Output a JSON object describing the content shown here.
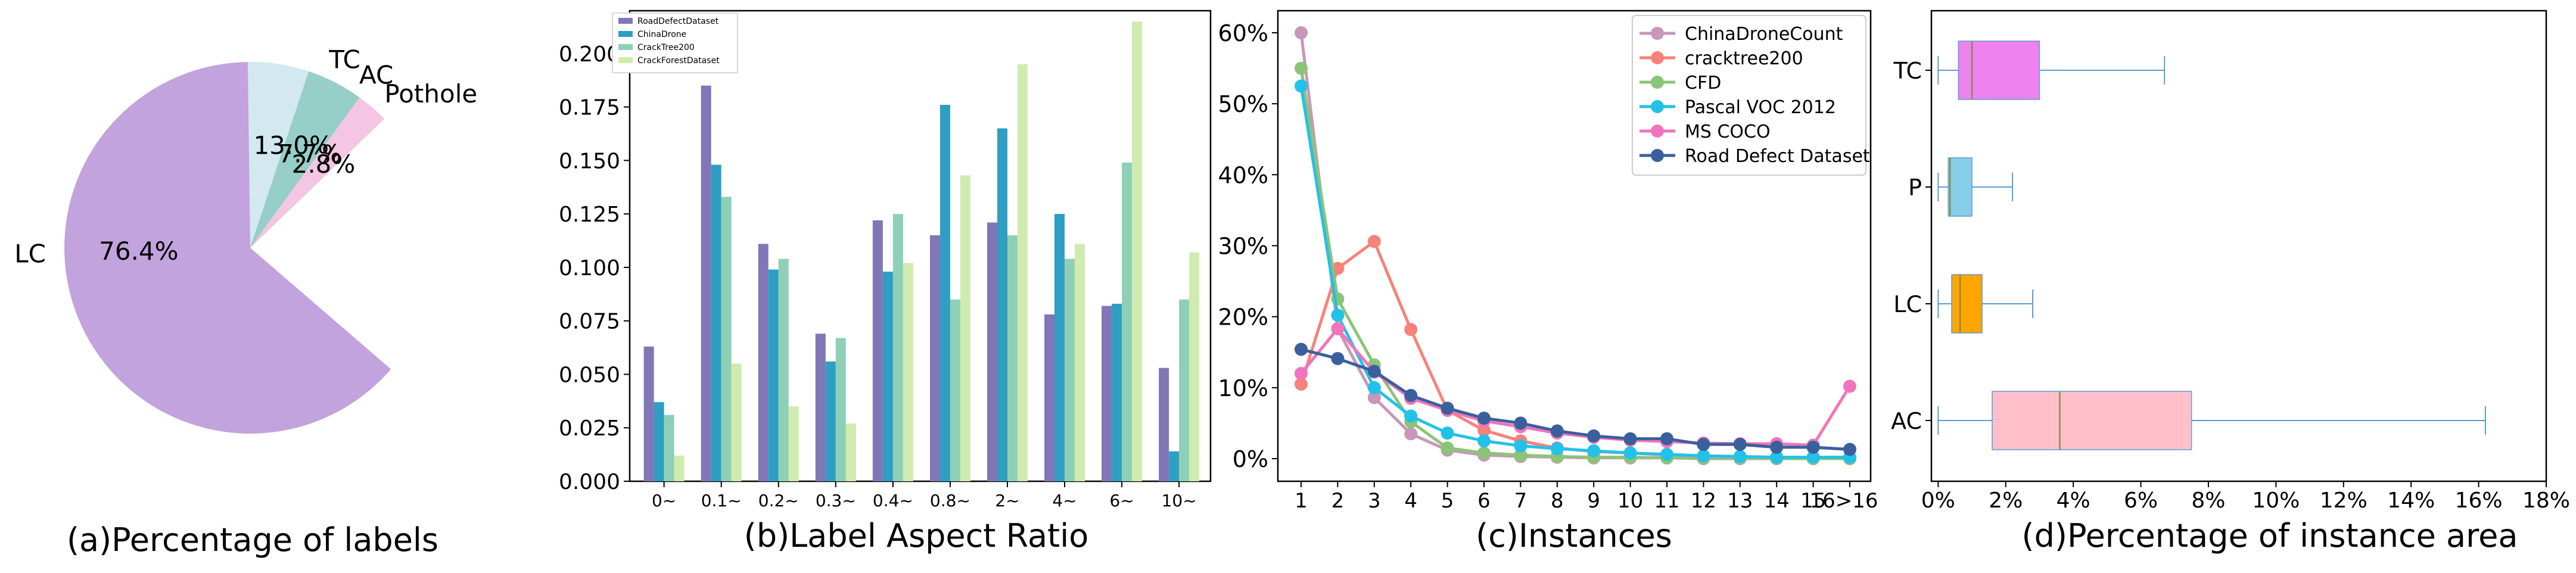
{
  "colors": {
    "pie_lc": "#c2a3dd",
    "pie_tc": "#d3e8ef",
    "pie_ac": "#96cec8",
    "pie_pothole": "#f4c6e4",
    "bar_roaddefect": "#8176b6",
    "bar_chinadrone": "#2e9ec2",
    "bar_cracktree": "#8ed0b5",
    "bar_crackforest": "#d0ebaf",
    "line_chinadrone": "#c797b9",
    "line_cracktree": "#f7827a",
    "line_cfd": "#8cc477",
    "line_pascal": "#23c1e8",
    "line_mscoco": "#f174bb",
    "line_roaddefect": "#3a5f9d",
    "box_tc": "#ee82ee",
    "box_p": "#87ceeb",
    "box_lc": "#ffa500",
    "box_ac": "#ffc0cb",
    "whisker": "#5b9bd5",
    "median": "#8c8c4a"
  },
  "chart_data": [
    {
      "type": "pie",
      "caption": "(a)Percentage of labels",
      "slices": [
        {
          "label": "LC",
          "value": 76.4,
          "pct_label": "76.4%"
        },
        {
          "label": "TC",
          "value": 13.0,
          "pct_label": "13.0%"
        },
        {
          "label": "AC",
          "value": 7.7,
          "pct_label": "7.7%"
        },
        {
          "label": "Pothole",
          "value": 2.8,
          "pct_label": "2.8%"
        }
      ]
    },
    {
      "type": "bar",
      "caption": "(b)Label Aspect Ratio",
      "categories": [
        "0~",
        "0.1~",
        "0.2~",
        "0.3~",
        "0.4~",
        "0.8~",
        "2~",
        "4~",
        "6~",
        "10~"
      ],
      "ylim": [
        0,
        0.22
      ],
      "yticks": [
        "0.000",
        "0.025",
        "0.050",
        "0.075",
        "0.100",
        "0.125",
        "0.150",
        "0.175",
        "0.200"
      ],
      "series": [
        {
          "name": "RoadDefectDataset",
          "values": [
            0.063,
            0.185,
            0.111,
            0.069,
            0.122,
            0.115,
            0.121,
            0.078,
            0.082,
            0.053
          ]
        },
        {
          "name": "ChinaDrone",
          "values": [
            0.037,
            0.148,
            0.099,
            0.056,
            0.098,
            0.176,
            0.165,
            0.125,
            0.083,
            0.014
          ]
        },
        {
          "name": "CrackTree200",
          "values": [
            0.031,
            0.133,
            0.104,
            0.067,
            0.125,
            0.085,
            0.115,
            0.104,
            0.149,
            0.085
          ]
        },
        {
          "name": "CrackForestDataset",
          "values": [
            0.012,
            0.055,
            0.035,
            0.027,
            0.102,
            0.143,
            0.195,
            0.111,
            0.215,
            0.107
          ]
        }
      ]
    },
    {
      "type": "line",
      "caption": "(c)Instances",
      "x": [
        "1",
        "2",
        "3",
        "4",
        "5",
        "6",
        "7",
        "8",
        "9",
        "10",
        "11",
        "12",
        "13",
        "14",
        "15",
        "16>16"
      ],
      "ylim": [
        0,
        60
      ],
      "yticks": [
        "0%",
        "10%",
        "20%",
        "30%",
        "40%",
        "50%",
        "60%"
      ],
      "series": [
        {
          "name": "ChinaDroneCount",
          "values": [
            60.0,
            18.3,
            8.6,
            3.5,
            1.2,
            0.5,
            0.3,
            0.2,
            0.1,
            0.1,
            0.1,
            0.0,
            0.0,
            0.0,
            0.0,
            0.0
          ]
        },
        {
          "name": "cracktree200",
          "values": [
            10.5,
            26.8,
            30.6,
            18.2,
            6.8,
            4.0,
            2.5,
            1.5,
            1.0,
            0.8,
            0.5,
            0.3,
            0.2,
            0.2,
            0.1,
            0.0
          ]
        },
        {
          "name": "CFD",
          "values": [
            55.0,
            22.5,
            13.2,
            5.2,
            1.5,
            0.8,
            0.5,
            0.3,
            0.2,
            0.2,
            0.1,
            0.1,
            0.1,
            0.0,
            0.0,
            0.0
          ]
        },
        {
          "name": "Pascal VOC 2012",
          "values": [
            52.5,
            20.2,
            10.0,
            6.0,
            3.6,
            2.5,
            1.8,
            1.4,
            1.1,
            0.8,
            0.6,
            0.4,
            0.3,
            0.2,
            0.2,
            0.2
          ]
        },
        {
          "name": "MS COCO",
          "values": [
            12.0,
            18.3,
            12.2,
            8.5,
            6.8,
            5.3,
            4.5,
            3.6,
            3.0,
            2.6,
            2.4,
            2.2,
            2.1,
            2.1,
            1.9,
            10.2
          ]
        },
        {
          "name": "Road Defect Dataset",
          "values": [
            15.4,
            14.1,
            12.3,
            8.9,
            7.1,
            5.7,
            5.0,
            3.9,
            3.2,
            2.8,
            2.8,
            2.0,
            2.0,
            1.6,
            1.6,
            1.3
          ]
        }
      ]
    },
    {
      "type": "box",
      "orientation": "horizontal",
      "caption": "(d)Percentage of instance area",
      "xlim": [
        -0.2,
        18
      ],
      "xticks": [
        {
          "value": 0,
          "label": "0%"
        },
        {
          "value": 2,
          "label": "2%"
        },
        {
          "value": 4,
          "label": "4%"
        },
        {
          "value": 6,
          "label": "6%"
        },
        {
          "value": 8,
          "label": "8%"
        },
        {
          "value": 10,
          "label": "10%"
        },
        {
          "value": 12,
          "label": "12%"
        },
        {
          "value": 14,
          "label": "14%"
        },
        {
          "value": 16,
          "label": "16%"
        },
        {
          "value": 18,
          "label": "18%"
        }
      ],
      "categories": [
        "TC",
        "P",
        "LC",
        "AC"
      ],
      "boxes": [
        {
          "label": "TC",
          "whislo": 0.0,
          "q1": 0.6,
          "med": 1.0,
          "q3": 3.0,
          "whishi": 6.7
        },
        {
          "label": "P",
          "whislo": 0.0,
          "q1": 0.3,
          "med": 0.35,
          "q3": 1.0,
          "whishi": 2.2
        },
        {
          "label": "LC",
          "whislo": 0.0,
          "q1": 0.4,
          "med": 0.65,
          "q3": 1.3,
          "whishi": 2.8
        },
        {
          "label": "AC",
          "whislo": 0.0,
          "q1": 1.6,
          "med": 3.6,
          "q3": 7.5,
          "whishi": 16.2
        }
      ]
    }
  ]
}
